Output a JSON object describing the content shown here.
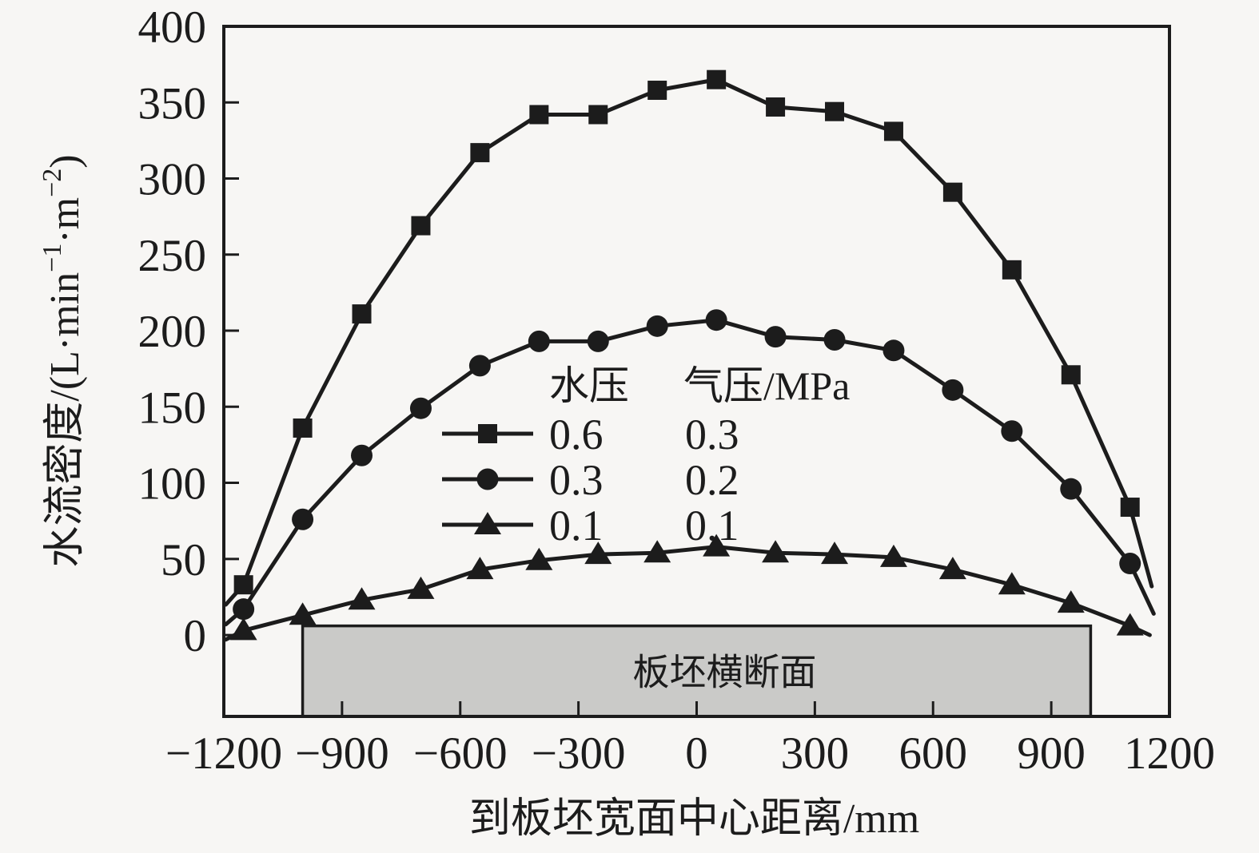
{
  "figure": {
    "background": "#f7f6f4",
    "ink": "#1c1c1c"
  },
  "chart_data": {
    "type": "line",
    "title": "",
    "xlabel": "到板坯宽面中心距离/mm",
    "ylabel": "水流密度/(L·min−1·m−2)",
    "ylabel_parts": [
      {
        "text": "水流密度/(L·min",
        "sup": false
      },
      {
        "text": "−1",
        "sup": true
      },
      {
        "text": "·m",
        "sup": false
      },
      {
        "text": "−2",
        "sup": true
      },
      {
        "text": ")",
        "sup": false
      }
    ],
    "xlim": [
      -1200,
      1200
    ],
    "ylim": [
      -53.5,
      400
    ],
    "xticks": [
      -1200,
      -900,
      -600,
      -300,
      0,
      300,
      600,
      900,
      1200
    ],
    "xtick_labels": [
      "−1200",
      "−900",
      "−600",
      "−300",
      "0",
      "300",
      "600",
      "900",
      "1200"
    ],
    "yticks": [
      0,
      50,
      100,
      150,
      200,
      250,
      300,
      350,
      400
    ],
    "ytick_labels": [
      "0",
      "50",
      "100",
      "150",
      "200",
      "250",
      "300",
      "350",
      "400"
    ],
    "grid": false,
    "legend": {
      "position": "inside-center",
      "col_headers": [
        "水压",
        "气压/MPa"
      ],
      "rows": [
        {
          "marker": "square",
          "water_pressure": "0.6",
          "air_pressure": "0.3"
        },
        {
          "marker": "circle",
          "water_pressure": "0.3",
          "air_pressure": "0.2"
        },
        {
          "marker": "triangle",
          "water_pressure": "0.1",
          "air_pressure": "0.1"
        }
      ]
    },
    "x": [
      -1150,
      -1000,
      -850,
      -700,
      -550,
      -400,
      -250,
      -100,
      50,
      200,
      350,
      500,
      650,
      800,
      950,
      1100
    ],
    "series": [
      {
        "name": "水压0.6 气压0.3",
        "marker": "square",
        "values": [
          33,
          136,
          211,
          269,
          317,
          342,
          342,
          358,
          365,
          347,
          344,
          331,
          291,
          240,
          171,
          84
        ],
        "line_ext_left": [
          -1195,
          20
        ],
        "line_ext_right": [
          1155,
          32
        ]
      },
      {
        "name": "水压0.3 气压0.2",
        "marker": "circle",
        "values": [
          17,
          76,
          118,
          149,
          177,
          193,
          193,
          203,
          207,
          196,
          194,
          187,
          161,
          134,
          96,
          47
        ],
        "line_ext_left": [
          -1195,
          7
        ],
        "line_ext_right": [
          1160,
          14
        ]
      },
      {
        "name": "水压0.1 气压0.1",
        "marker": "triangle",
        "values": [
          3,
          13,
          23,
          30,
          43,
          49,
          53,
          54,
          58,
          54,
          53,
          51,
          43,
          33,
          21,
          6
        ],
        "line_ext_left": [
          -1195,
          -3
        ],
        "line_ext_right": [
          1150,
          0
        ]
      }
    ],
    "annotation_box": {
      "label": "板坯横断面",
      "x_from": -1000,
      "x_to": 1000,
      "y_top": 6,
      "fill": "#cacac8"
    }
  }
}
